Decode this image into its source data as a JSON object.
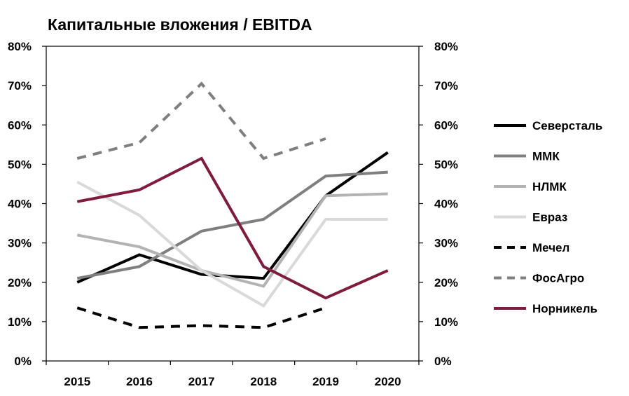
{
  "chart_data": {
    "type": "line",
    "title": "Капитальные вложения / EBITDA",
    "x": [
      "2015",
      "2016",
      "2017",
      "2018",
      "2019",
      "2020"
    ],
    "ylim": [
      0,
      80
    ],
    "yticks": [
      0,
      10,
      20,
      30,
      40,
      50,
      60,
      70,
      80
    ],
    "ytick_labels": [
      "0%",
      "10%",
      "20%",
      "30%",
      "40%",
      "50%",
      "60%",
      "70%",
      "80%"
    ],
    "y_unit": "%",
    "secondary_y_axis": true,
    "grid": false,
    "legend_position": "right",
    "series": [
      {
        "name": "Северсталь",
        "color": "#000000",
        "dash": "solid",
        "values": [
          20,
          27,
          22,
          21,
          42,
          53
        ]
      },
      {
        "name": "ММК",
        "color": "#7f7f7f",
        "dash": "solid",
        "values": [
          21,
          24,
          33,
          36,
          47,
          48
        ]
      },
      {
        "name": "НЛМК",
        "color": "#b3b3b3",
        "dash": "solid",
        "values": [
          32,
          29,
          23,
          19,
          42,
          42.5
        ]
      },
      {
        "name": "Евраз",
        "color": "#d9d9d9",
        "dash": "solid",
        "values": [
          45.5,
          37,
          23,
          14,
          36,
          36
        ]
      },
      {
        "name": "Мечел",
        "color": "#000000",
        "dash": "dashed",
        "values": [
          13.5,
          8.5,
          9,
          8.5,
          13.5,
          null
        ]
      },
      {
        "name": "ФосАгро",
        "color": "#7f7f7f",
        "dash": "dashed",
        "values": [
          51.5,
          55.5,
          70.5,
          51.5,
          56.5,
          null
        ]
      },
      {
        "name": "Норникель",
        "color": "#7f1b3f",
        "dash": "solid",
        "values": [
          40.5,
          43.5,
          51.5,
          24,
          16,
          23
        ]
      }
    ]
  }
}
